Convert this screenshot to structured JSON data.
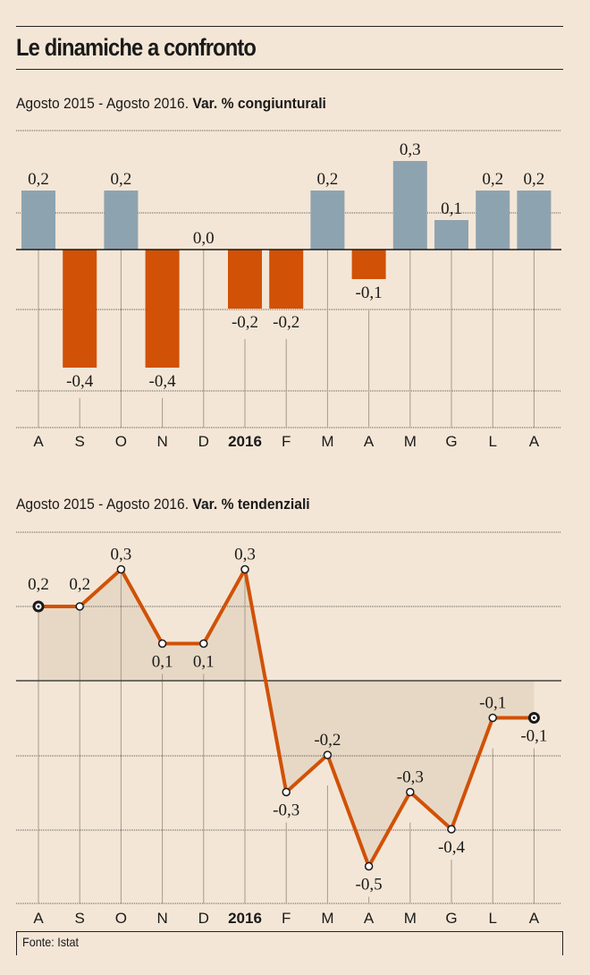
{
  "title": "Le dinamiche a confronto",
  "source": "Fonte: Istat",
  "colors": {
    "background": "#f4e6d6",
    "positive_bar": "#8ea3b0",
    "negative_bar": "#d15106",
    "line": "#d15106",
    "area_fill": "#e6d6c3",
    "text": "#1a1a1a"
  },
  "chart_data": [
    {
      "type": "bar",
      "title_prefix": "Agosto 2015 - Agosto 2016. ",
      "title_bold": "Var. % congiunturali",
      "categories": [
        "A",
        "S",
        "O",
        "N",
        "D",
        "2016",
        "F",
        "M",
        "A",
        "M",
        "G",
        "L",
        "A"
      ],
      "bold_categories": [
        "2016"
      ],
      "values": [
        0.2,
        -0.4,
        0.2,
        -0.4,
        0.0,
        -0.2,
        -0.2,
        0.2,
        -0.1,
        0.3,
        0.1,
        0.2,
        0.2
      ],
      "labels": [
        "0,2",
        "-0,4",
        "0,2",
        "-0,4",
        "0,0",
        "-0,2",
        "-0,2",
        "0,2",
        "-0,1",
        "0,3",
        "0,1",
        "0,2",
        "0,2"
      ],
      "xlabel": "",
      "ylabel": "",
      "ylim": [
        -0.6,
        0.4
      ],
      "grid": true,
      "legend": "none"
    },
    {
      "type": "line",
      "title_prefix": "Agosto 2015 - Agosto 2016. ",
      "title_bold": "Var. % tendenziali",
      "categories": [
        "A",
        "S",
        "O",
        "N",
        "D",
        "2016",
        "F",
        "M",
        "A",
        "M",
        "G",
        "L",
        "A"
      ],
      "bold_categories": [
        "2016"
      ],
      "values": [
        0.2,
        0.2,
        0.3,
        0.1,
        0.1,
        0.3,
        -0.3,
        -0.2,
        -0.5,
        -0.3,
        -0.4,
        -0.1,
        -0.1
      ],
      "labels": [
        "0,2",
        "0,2",
        "0,3",
        "0,1",
        "0,1",
        "0,3",
        "-0,3",
        "-0,2",
        "-0,5",
        "-0,3",
        "-0,4",
        "-0,1",
        "-0,1"
      ],
      "xlabel": "",
      "ylabel": "",
      "ylim": [
        -0.6,
        0.4
      ],
      "grid": true,
      "legend": "none"
    }
  ]
}
